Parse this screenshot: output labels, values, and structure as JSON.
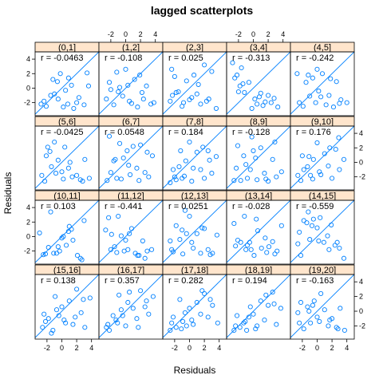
{
  "chart_data": {
    "type": "scatter",
    "title": "lagged scatterplots",
    "xlabel": "Residuals",
    "ylabel": "Residuals",
    "xlim": [
      -3.6,
      5.0
    ],
    "ylim": [
      -3.8,
      5.0
    ],
    "x_ticks": [
      -2,
      0,
      2,
      4
    ],
    "y_ticks": [
      -2,
      0,
      2,
      4
    ],
    "reference_line": "y = x",
    "colors": {
      "points": "#0080ff",
      "line": "#0080ff",
      "strip": "#ffe5cc",
      "frame": "#000000"
    },
    "panels": [
      {
        "lag": "(0,1]",
        "r_label": "r = -0.0463",
        "x": [
          -2.8,
          -2.1,
          -1.2,
          -1.0,
          -0.6,
          -0.5,
          0.2,
          0.5,
          0.8,
          1.3,
          1.6,
          2.3,
          3.0,
          3.6,
          -1.5,
          -0.2,
          0.9,
          2.0,
          -2.4,
          3.4
        ],
        "y": [
          -2.2,
          -2.5,
          1.2,
          -0.8,
          0.9,
          -1.5,
          -2.6,
          -0.3,
          -2.2,
          0.4,
          -2.8,
          -1.3,
          -2.3,
          0.3,
          -1.0,
          2.0,
          1.4,
          -2.0,
          -1.8,
          2.1
        ]
      },
      {
        "lag": "(1,2]",
        "r_label": "r = -0.108",
        "x": [
          -2.6,
          -2.0,
          -1.6,
          -1.2,
          -0.8,
          -0.4,
          0.0,
          0.3,
          0.8,
          1.2,
          1.6,
          2.2,
          2.8,
          3.4,
          -1.0,
          0.5,
          1.9,
          -2.2,
          2.4,
          3.8
        ],
        "y": [
          -1.5,
          -0.2,
          -2.3,
          2.2,
          0.1,
          -1.1,
          2.6,
          0.4,
          -2.1,
          1.2,
          -2.6,
          -0.6,
          0.3,
          -2.2,
          -0.5,
          -1.8,
          1.8,
          0.8,
          -1.5,
          -2.0
        ]
      },
      {
        "lag": "(2,3]",
        "r_label": "r = 0.025",
        "x": [
          -2.6,
          -2.3,
          -2.0,
          -1.5,
          -1.0,
          -0.4,
          0.0,
          0.6,
          1.0,
          1.5,
          2.0,
          2.6,
          3.0,
          3.6,
          -1.8,
          0.3,
          1.2,
          -0.8,
          2.3,
          -2.4
        ],
        "y": [
          -1.8,
          -1.0,
          1.6,
          -0.5,
          -2.5,
          1.0,
          -1.6,
          1.8,
          -0.8,
          -2.2,
          3.2,
          -1.5,
          2.3,
          -2.8,
          -0.6,
          -1.3,
          0.5,
          -2.0,
          -1.8,
          2.6
        ]
      },
      {
        "lag": "(3,4]",
        "r_label": "r = -0.313",
        "x": [
          -2.5,
          -2.0,
          -1.8,
          -1.6,
          -1.2,
          -0.6,
          -0.2,
          0.5,
          1.0,
          1.6,
          2.0,
          2.8,
          3.3,
          -2.2,
          -1.4,
          0.2,
          1.3,
          -2.8,
          0.8,
          2.4
        ],
        "y": [
          1.4,
          -0.5,
          0.3,
          2.8,
          -0.6,
          0.8,
          -2.8,
          -2.2,
          -0.7,
          -1.9,
          -1.0,
          -1.4,
          -2.6,
          1.8,
          0.6,
          -1.5,
          -2.4,
          3.5,
          -1.2,
          -2.0
        ]
      },
      {
        "lag": "(4,5]",
        "r_label": "r = -0.242",
        "x": [
          -2.4,
          -1.9,
          -1.5,
          -1.0,
          -0.6,
          -0.2,
          0.2,
          0.7,
          1.2,
          1.6,
          2.2,
          2.6,
          3.2,
          4.0,
          -1.2,
          0.5,
          1.8,
          -2.7,
          3.0,
          0.0
        ],
        "y": [
          -2.0,
          -2.5,
          0.8,
          -1.1,
          1.4,
          -2.0,
          -0.4,
          2.0,
          -2.3,
          -1.0,
          -2.6,
          0.9,
          -1.6,
          -2.0,
          1.8,
          -1.2,
          1.3,
          2.0,
          -2.1,
          2.6
        ]
      },
      {
        "lag": "(5,6]",
        "r_label": "r = -0.0425",
        "x": [
          -2.7,
          -2.3,
          -1.9,
          -1.4,
          -1.0,
          -0.5,
          0.0,
          0.4,
          0.9,
          1.4,
          2.0,
          2.5,
          3.1,
          3.7,
          -1.6,
          0.2,
          1.1,
          -0.8,
          2.8,
          -2.1
        ],
        "y": [
          -1.8,
          -2.6,
          2.1,
          -0.6,
          2.8,
          0.3,
          -1.3,
          2.1,
          -0.8,
          -2.0,
          -1.8,
          -2.4,
          0.4,
          -2.2,
          1.5,
          -2.3,
          0.0,
          -1.5,
          -2.6,
          0.9
        ]
      },
      {
        "lag": "(6,7]",
        "r_label": "r = 0.0548",
        "x": [
          -2.5,
          -2.0,
          -1.6,
          -1.2,
          -0.8,
          -0.3,
          0.2,
          0.6,
          1.0,
          1.5,
          2.0,
          2.6,
          3.1,
          3.6,
          -1.4,
          0.4,
          1.8,
          -0.6,
          2.9,
          -2.2
        ],
        "y": [
          -2.5,
          -1.4,
          0.2,
          -2.2,
          2.6,
          0.6,
          1.6,
          -1.7,
          2.2,
          -0.8,
          2.4,
          -1.4,
          -2.0,
          0.9,
          0.4,
          -0.4,
          -2.5,
          -2.3,
          1.4,
          3.6
        ]
      },
      {
        "lag": "(7,8]",
        "r_label": "r = 0.184",
        "x": [
          -2.6,
          -2.2,
          -1.8,
          -1.4,
          -1.0,
          -0.5,
          0.0,
          0.5,
          1.0,
          1.5,
          2.0,
          2.5,
          3.0,
          3.6,
          -1.2,
          0.3,
          1.8,
          -0.7,
          2.7,
          -2.0
        ],
        "y": [
          -2.8,
          -1.0,
          -2.4,
          -0.6,
          -2.2,
          0.2,
          2.8,
          -0.8,
          1.4,
          -1.0,
          -2.2,
          1.6,
          -1.5,
          0.8,
          1.6,
          -2.6,
          2.1,
          -1.9,
          0.3,
          -2.0
        ]
      },
      {
        "lag": "(8,9]",
        "r_label": "r = -0.128",
        "x": [
          -2.6,
          -2.1,
          -1.7,
          -1.3,
          -0.8,
          -0.4,
          0.0,
          0.5,
          1.0,
          1.5,
          2.0,
          2.6,
          3.1,
          3.8,
          -1.0,
          0.3,
          1.7,
          -2.3,
          2.9,
          -0.2
        ],
        "y": [
          -2.5,
          2.3,
          -2.5,
          0.9,
          -2.2,
          -1.0,
          1.6,
          -2.4,
          2.0,
          -1.5,
          -2.6,
          0.4,
          -2.0,
          -1.3,
          -0.3,
          0.6,
          -2.3,
          -0.8,
          2.8,
          3.5
        ]
      },
      {
        "lag": "(9,10]",
        "r_label": "r = 0.176",
        "x": [
          -2.6,
          -2.2,
          -1.8,
          -1.3,
          -0.9,
          -0.5,
          0.0,
          0.5,
          1.0,
          1.5,
          2.0,
          2.5,
          3.0,
          3.6,
          -1.1,
          0.3,
          1.7,
          -2.0,
          2.9,
          -0.6
        ],
        "y": [
          -1.8,
          -2.5,
          -1.0,
          -0.6,
          -1.8,
          0.4,
          2.7,
          -1.7,
          1.2,
          -0.5,
          -2.2,
          1.8,
          -1.0,
          0.4,
          0.8,
          -1.3,
          2.0,
          0.9,
          3.4,
          -2.3
        ]
      },
      {
        "lag": "(10,11]",
        "r_label": "r = 0.103",
        "x": [
          -3.0,
          -2.2,
          -1.5,
          -1.1,
          -0.7,
          -0.3,
          0.2,
          0.6,
          1.0,
          1.5,
          2.1,
          2.5,
          3.0,
          -1.8,
          0.0,
          1.3,
          -2.5,
          2.7,
          -0.5,
          0.9
        ],
        "y": [
          0.5,
          -2.4,
          3.4,
          -2.3,
          -2.3,
          -2.0,
          0.0,
          -1.2,
          1.4,
          -0.5,
          -2.6,
          -3.0,
          2.2,
          -1.5,
          -0.2,
          1.0,
          -2.5,
          -3.2,
          -1.4,
          0.7
        ]
      },
      {
        "lag": "(11,12]",
        "r_label": "r = -0.441",
        "x": [
          -2.7,
          -2.3,
          -1.9,
          -1.5,
          -1.0,
          -0.6,
          -0.2,
          0.3,
          0.8,
          1.3,
          1.8,
          2.3,
          2.9,
          3.5,
          -1.2,
          0.5,
          1.6,
          -2.0,
          2.6,
          0.0
        ],
        "y": [
          0.9,
          2.6,
          0.3,
          -1.4,
          2.8,
          0.1,
          -2.0,
          -1.8,
          1.1,
          -2.3,
          -2.6,
          -0.6,
          -2.0,
          -1.8,
          -2.2,
          0.4,
          -2.6,
          -1.8,
          -3.0,
          -0.5
        ]
      },
      {
        "lag": "(12,13]",
        "r_label": "r = 0.0251",
        "x": [
          -2.6,
          -2.2,
          -1.8,
          -1.3,
          -0.9,
          -0.4,
          0.0,
          0.5,
          1.0,
          1.5,
          2.0,
          2.5,
          3.1,
          3.7,
          -1.0,
          0.3,
          1.7,
          -2.4,
          2.8,
          -0.6
        ],
        "y": [
          -0.6,
          -2.1,
          1.5,
          -0.4,
          -2.4,
          0.4,
          2.8,
          -1.6,
          0.4,
          -2.3,
          1.1,
          -1.8,
          -2.3,
          0.2,
          0.9,
          -0.8,
          1.2,
          -1.8,
          -2.5,
          3.6
        ]
      },
      {
        "lag": "(13,14]",
        "r_label": "r = -0.028",
        "x": [
          -2.6,
          -2.1,
          -1.7,
          -1.2,
          -0.8,
          -0.3,
          0.1,
          0.6,
          1.1,
          1.6,
          2.1,
          2.6,
          3.2,
          3.8,
          -1.0,
          0.4,
          1.8,
          -2.4,
          2.9,
          -0.5
        ],
        "y": [
          1.8,
          -0.5,
          -0.8,
          2.8,
          -1.2,
          -1.8,
          -2.6,
          0.8,
          -1.6,
          -0.2,
          -1.4,
          -0.7,
          -2.0,
          1.5,
          -1.8,
          2.4,
          -2.2,
          -1.3,
          -2.4,
          -0.8
        ]
      },
      {
        "lag": "(14,15]",
        "r_label": "r = -0.559",
        "x": [
          -2.6,
          -2.2,
          -1.8,
          -1.4,
          -1.0,
          -0.5,
          0.0,
          0.4,
          0.9,
          1.4,
          1.9,
          2.4,
          3.0,
          3.6,
          -1.2,
          0.2,
          1.6,
          -2.4,
          2.7,
          -0.7
        ],
        "y": [
          -1.0,
          -2.6,
          2.2,
          1.9,
          -0.4,
          2.4,
          1.2,
          2.6,
          -0.8,
          0.1,
          1.6,
          -1.2,
          -1.6,
          -3.0,
          3.4,
          -0.6,
          -1.8,
          0.6,
          -0.8,
          1.5
        ]
      },
      {
        "lag": "(15,16]",
        "r_label": "r = 0.138",
        "x": [
          -2.6,
          -2.2,
          -1.8,
          -1.4,
          -0.9,
          -0.4,
          0.0,
          0.5,
          1.0,
          1.5,
          2.0,
          2.6,
          3.1,
          3.8,
          -1.2,
          0.3,
          1.8,
          -2.4,
          2.9,
          -0.7
        ],
        "y": [
          -2.2,
          -1.4,
          -1.0,
          -3.0,
          2.0,
          -0.6,
          0.6,
          -1.6,
          1.4,
          -1.8,
          3.0,
          -0.2,
          -2.2,
          1.8,
          -2.6,
          -1.2,
          -0.8,
          -0.4,
          1.6,
          0.2
        ]
      },
      {
        "lag": "(16,17]",
        "r_label": "r = 0.357",
        "x": [
          -2.6,
          -2.2,
          -1.7,
          -1.3,
          -0.9,
          -0.4,
          0.0,
          0.5,
          1.0,
          1.5,
          2.0,
          2.6,
          3.1,
          3.7,
          -1.1,
          0.3,
          1.7,
          -2.4,
          2.8,
          -0.6
        ],
        "y": [
          -2.2,
          -2.6,
          -0.6,
          -1.2,
          2.2,
          -0.6,
          -2.0,
          2.6,
          0.4,
          -1.0,
          2.8,
          0.6,
          -0.4,
          2.0,
          -1.6,
          1.2,
          -2.2,
          -1.8,
          1.4,
          0.2
        ]
      },
      {
        "lag": "(17,18]",
        "r_label": "r = 0.282",
        "x": [
          -2.6,
          -2.2,
          -1.8,
          -1.3,
          -0.9,
          -0.4,
          0.0,
          0.5,
          1.0,
          1.5,
          2.0,
          2.5,
          3.1,
          3.8,
          -1.1,
          0.3,
          1.7,
          -2.4,
          2.8,
          -0.6
        ],
        "y": [
          -2.6,
          -0.8,
          -2.2,
          1.6,
          -1.4,
          -2.0,
          0.4,
          -1.8,
          1.2,
          -0.4,
          2.4,
          -0.8,
          0.8,
          -1.6,
          -2.4,
          -1.2,
          2.8,
          -1.6,
          1.6,
          -0.2
        ]
      },
      {
        "lag": "(18,19]",
        "r_label": "r = 0.194",
        "x": [
          -2.6,
          -2.2,
          -1.8,
          -1.3,
          -0.9,
          -0.4,
          0.0,
          0.5,
          1.0,
          1.5,
          2.0,
          2.6,
          3.1,
          3.7,
          -1.1,
          0.3,
          1.7,
          -2.4,
          2.8,
          -0.6
        ],
        "y": [
          -2.6,
          -0.6,
          -2.2,
          -1.6,
          -2.6,
          0.6,
          -0.4,
          -2.0,
          1.4,
          -1.2,
          0.8,
          2.6,
          -1.8,
          0.4,
          -1.4,
          -2.4,
          2.2,
          -2.0,
          1.0,
          -0.8
        ]
      },
      {
        "lag": "(19,20]",
        "r_label": "r = -0.163",
        "x": [
          -2.6,
          -2.2,
          -1.8,
          -1.3,
          -0.9,
          -0.4,
          0.0,
          0.5,
          1.0,
          1.5,
          2.0,
          2.6,
          3.1,
          3.7,
          -1.1,
          0.3,
          1.7,
          -2.4,
          2.8,
          -0.6
        ],
        "y": [
          -0.2,
          1.2,
          -2.4,
          0.6,
          -1.6,
          1.4,
          -0.8,
          2.4,
          0.2,
          -2.0,
          -1.0,
          -2.2,
          0.4,
          -2.6,
          0.0,
          -1.4,
          -1.2,
          -1.6,
          -2.4,
          0.8
        ]
      }
    ]
  }
}
